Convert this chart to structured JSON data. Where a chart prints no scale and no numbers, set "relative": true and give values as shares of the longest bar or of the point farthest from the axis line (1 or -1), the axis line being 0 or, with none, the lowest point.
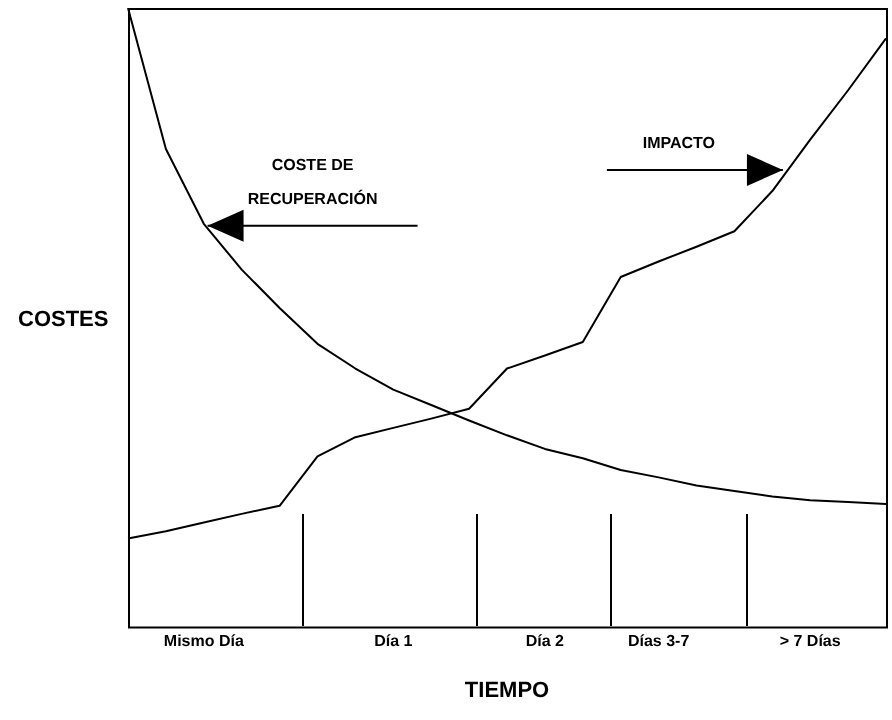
{
  "chart_data": {
    "type": "line",
    "relative": true,
    "xlabel": "TIEMPO",
    "ylabel": "COSTES",
    "categories": [
      null,
      null,
      "Mismo Día",
      null,
      null,
      null,
      null,
      "Día 1",
      null,
      null,
      null,
      "Día 2",
      null,
      null,
      "Días 3-7",
      null,
      null,
      null,
      "> 7 Días",
      null,
      null
    ],
    "series": [
      {
        "color": "#000000",
        "values": [
          1,
          0.772,
          0.651,
          0.577,
          0.515,
          0.457,
          0.417,
          0.383,
          0.358,
          0.333,
          0.309,
          0.287,
          0.272,
          0.253,
          0.241,
          0.228,
          0.219,
          0.21,
          0.204,
          0.201,
          0.198
        ]
      },
      {
        "color": "#000000",
        "values": [
          0.142,
          0.154,
          0.168,
          0.182,
          0.195,
          0.275,
          0.306,
          0.321,
          0.336,
          0.352,
          0.417,
          0.438,
          0.46,
          0.565,
          0.59,
          0.614,
          0.639,
          0.704,
          0.787,
          0.867,
          0.951
        ]
      }
    ],
    "annotations": [
      "COSTE DE RECUPERACIÓN",
      "IMPACTO"
    ],
    "grid": false,
    "legend": false,
    "marker": "none",
    "line_style": "solid"
  }
}
